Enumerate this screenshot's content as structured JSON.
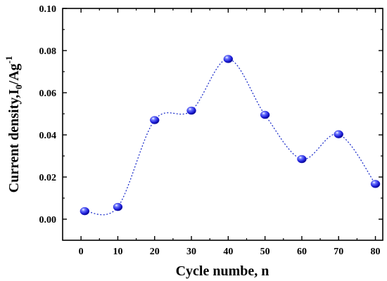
{
  "chart_data": {
    "type": "scatter",
    "xlabel": "Cycle numbe, n",
    "ylabel": {
      "prefix": "Current density,I",
      "subscript": "0",
      "middle": "/Ag",
      "superscript": "-1"
    },
    "xlim": [
      -5,
      82
    ],
    "ylim": [
      -0.01,
      0.1
    ],
    "x_ticks": [
      0,
      10,
      20,
      30,
      40,
      50,
      60,
      70,
      80
    ],
    "x_tick_labels": [
      "0",
      "10",
      "20",
      "30",
      "40",
      "50",
      "60",
      "70",
      "80"
    ],
    "y_ticks": [
      0.0,
      0.02,
      0.04,
      0.06,
      0.08,
      0.1
    ],
    "y_tick_labels": [
      "0.00",
      "0.02",
      "0.04",
      "0.06",
      "0.08",
      "0.10"
    ],
    "grid": false,
    "series": [
      {
        "x": [
          1,
          10,
          20,
          30,
          40,
          50,
          60,
          70,
          80
        ],
        "y": [
          0.0038,
          0.0058,
          0.047,
          0.0515,
          0.076,
          0.0495,
          0.0285,
          0.0403,
          0.0167
        ],
        "marker_color": "#1a1ad6",
        "fit_color": "#2233cc",
        "fit_style": "dotted"
      }
    ]
  }
}
